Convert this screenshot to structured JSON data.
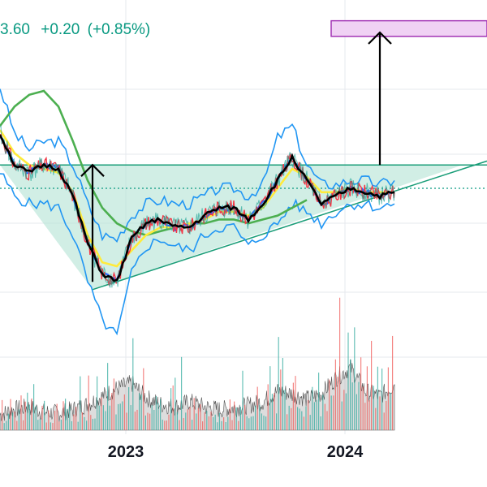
{
  "header": {
    "price_fragment": "3.60",
    "change": "+0.20",
    "change_pct": "(+0.85%)",
    "color": "#089981"
  },
  "colors": {
    "background": "#ffffff",
    "grid": "#e6e9ee",
    "triangle_fill": "#b2e3d4",
    "triangle_line": "#1a9d78",
    "target_box_fill": "#f0d2f4",
    "target_box_stroke": "#9c27b0",
    "arrow": "#000000",
    "bollinger": "#2196f3",
    "sma_long": "#4caf50",
    "ema_yellow": "#ffeb3b",
    "ema_black": "#000000",
    "ema_blue": "#2962ff",
    "ema_red": "#f23645",
    "dotted_level": "#089981",
    "volume_area": "#9e9e9e",
    "volume_up": "#26a69a",
    "volume_down": "#ef5350"
  },
  "chart_data": {
    "type": "line",
    "x_axis": {
      "tick_labels": [
        "2023",
        "2024"
      ]
    },
    "y_axis": {
      "ylim": [
        0,
        100
      ],
      "unit": "relative"
    },
    "grid": true,
    "series": [
      {
        "key": "price",
        "x": [
          0,
          3,
          6,
          9,
          12,
          15,
          18,
          21,
          24,
          27,
          30,
          33,
          36,
          39,
          42,
          45,
          48,
          51,
          54,
          57,
          60,
          63,
          66,
          69,
          72,
          75,
          78,
          81
        ],
        "values": [
          74,
          66,
          64,
          66,
          65,
          58,
          46,
          38,
          36,
          47,
          51,
          52,
          50,
          50,
          53,
          55,
          55,
          52,
          56,
          62,
          68,
          62,
          56,
          58,
          60,
          59,
          58,
          59
        ]
      },
      {
        "key": "sma_long",
        "x": [
          0,
          3,
          6,
          9,
          12,
          15,
          18,
          21,
          24,
          27,
          30,
          33,
          36,
          39,
          42,
          45,
          48,
          51,
          54,
          57,
          60,
          63
        ],
        "values": [
          76,
          81,
          84,
          85,
          81,
          72,
          62,
          55,
          51,
          49,
          48,
          49,
          50,
          51,
          51,
          52,
          52,
          51,
          52,
          53,
          55,
          57
        ]
      },
      {
        "key": "ema_yellow",
        "x": [
          0,
          3,
          6,
          9,
          12,
          15,
          18,
          21,
          24,
          27,
          30,
          33,
          36,
          39,
          42,
          45,
          48,
          51,
          54,
          57,
          60,
          63,
          66,
          69,
          72,
          75,
          78,
          81
        ],
        "values": [
          75,
          69,
          66,
          65,
          64,
          59,
          48,
          41,
          40,
          44,
          48,
          50,
          50,
          51,
          52,
          54,
          54,
          53,
          55,
          60,
          65,
          63,
          59,
          59,
          60,
          59,
          59,
          59
        ]
      }
    ],
    "bollinger_bands": {
      "x": [
        0,
        3,
        6,
        9,
        12,
        15,
        18,
        21,
        24,
        27,
        30,
        33,
        36,
        39,
        42,
        45,
        48,
        51,
        54,
        57,
        60,
        63,
        66,
        69,
        72,
        75,
        78,
        81
      ],
      "upper": [
        86,
        74,
        70,
        72,
        72,
        66,
        56,
        48,
        47,
        53,
        56,
        57,
        56,
        56,
        58,
        60,
        60,
        58,
        61,
        73,
        76,
        66,
        61,
        61,
        62,
        62,
        61,
        62
      ],
      "lower": [
        64,
        58,
        56,
        56,
        55,
        48,
        36,
        26,
        22,
        38,
        45,
        47,
        45,
        44,
        48,
        50,
        50,
        45,
        48,
        51,
        56,
        54,
        51,
        54,
        56,
        56,
        55,
        56
      ]
    },
    "triangle": {
      "top_x": [
        0,
        95
      ],
      "top_y": 66,
      "bottom_x": [
        19,
        95
      ],
      "bottom_y": [
        34,
        66
      ]
    },
    "dotted_level_y": 60,
    "target_zone": {
      "x": [
        68,
        100
      ],
      "y": [
        99,
        103
      ]
    },
    "arrows": [
      {
        "x": 19,
        "from": 36,
        "to": 66
      },
      {
        "x": 78,
        "from": 66,
        "to": 100
      }
    ],
    "volume": {
      "x": [
        0,
        3,
        6,
        9,
        12,
        15,
        18,
        21,
        24,
        27,
        30,
        33,
        36,
        39,
        42,
        45,
        48,
        51,
        54,
        57,
        60,
        63,
        66,
        69,
        72,
        75,
        78,
        81
      ],
      "values": [
        12,
        16,
        18,
        14,
        13,
        16,
        20,
        26,
        32,
        36,
        25,
        20,
        18,
        22,
        18,
        16,
        17,
        19,
        22,
        30,
        28,
        24,
        28,
        40,
        48,
        30,
        26,
        35
      ]
    }
  }
}
